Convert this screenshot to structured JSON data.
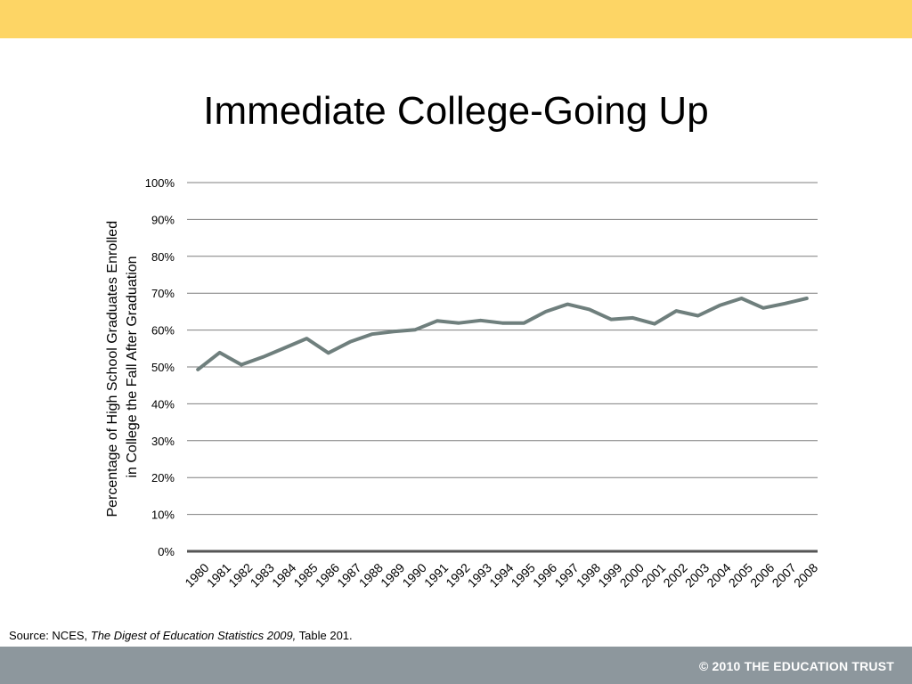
{
  "slide": {
    "title": "Immediate College-Going Up",
    "source": {
      "prefix": "Source: NCES, ",
      "publication": "The Digest of Education Statistics 2009,",
      "suffix": " Table 201."
    },
    "copyright": "© 2010 THE EDUCATION TRUST"
  },
  "colors": {
    "top_band": "#fdd565",
    "bottom_band": "#8d979d",
    "series_line": "#6f7f7d",
    "gridline": "#7f7f7f",
    "baseline": "#555555"
  },
  "chart_data": {
    "type": "line",
    "title": "Immediate College-Going Up",
    "ylabel": "Percentage of High School Graduates Enrolled in College the Fall After Graduation",
    "ylabel_lines": [
      "Percentage of High School Graduates Enrolled",
      "in College the Fall After Graduation"
    ],
    "xlabel": "",
    "ylim": [
      0,
      100
    ],
    "yticks": [
      0,
      10,
      20,
      30,
      40,
      50,
      60,
      70,
      80,
      90,
      100
    ],
    "ytick_labels": [
      "0%",
      "10%",
      "20%",
      "30%",
      "40%",
      "50%",
      "60%",
      "70%",
      "80%",
      "90%",
      "100%"
    ],
    "grid": true,
    "legend": "none",
    "categories": [
      "1980",
      "1981",
      "1982",
      "1983",
      "1984",
      "1985",
      "1986",
      "1987",
      "1988",
      "1989",
      "1990",
      "1991",
      "1992",
      "1993",
      "1994",
      "1995",
      "1996",
      "1997",
      "1998",
      "1999",
      "2000",
      "2001",
      "2002",
      "2003",
      "2004",
      "2005",
      "2006",
      "2007",
      "2008"
    ],
    "series": [
      {
        "values": [
          49.3,
          53.9,
          50.6,
          52.7,
          55.2,
          57.7,
          53.8,
          56.8,
          58.9,
          59.6,
          60.1,
          62.5,
          61.9,
          62.6,
          61.9,
          61.9,
          65.0,
          67.0,
          65.6,
          62.9,
          63.3,
          61.7,
          65.2,
          63.9,
          66.7,
          68.6,
          66.0,
          67.2,
          68.6
        ]
      }
    ]
  }
}
